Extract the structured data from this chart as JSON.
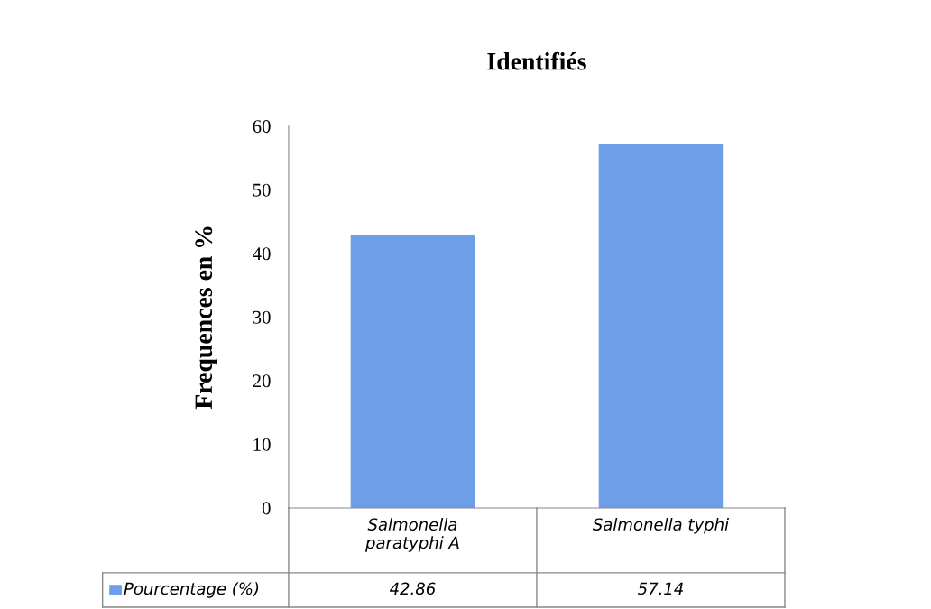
{
  "chart_data": {
    "type": "bar",
    "title": "Identifiés",
    "ylabel": "Frequences en %",
    "categories": [
      "Salmonella\nparatyphi A",
      "Salmonella typhi"
    ],
    "series": [
      {
        "name": "Pourcentage (%)",
        "color": "#6f9ee8",
        "values": [
          42.86,
          57.14
        ]
      }
    ],
    "ylim": [
      0,
      60
    ],
    "yticks": [
      0,
      10,
      20,
      30,
      40,
      50,
      60
    ],
    "grid": false,
    "data_labels": true
  }
}
